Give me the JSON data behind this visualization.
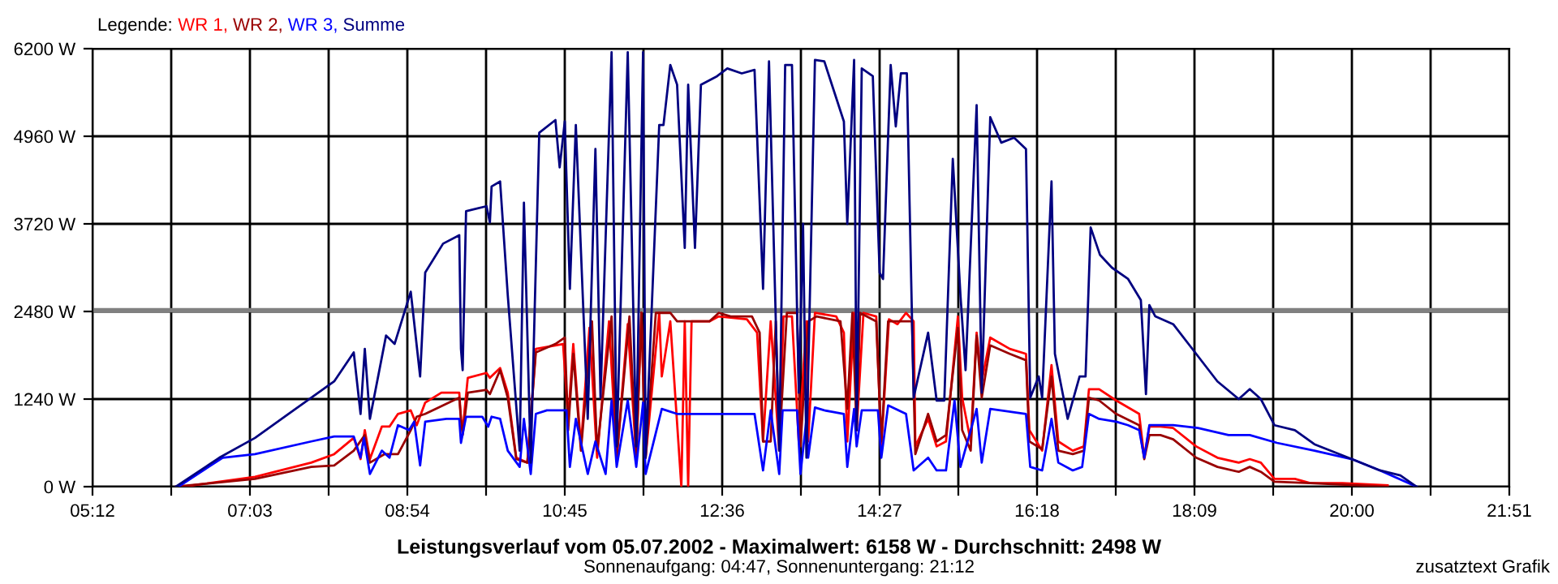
{
  "chart_data": {
    "type": "line",
    "title": "Leistungsverlauf vom 05.07.2002 - Maximalwert: 6158 W - Durchschnitt: 2498 W",
    "subtitle": "Sonnenaufgang: 04:47, Sonnenuntergang: 21:12",
    "legend_title": "Legende:",
    "legend": "top left",
    "grid": true,
    "line_style": "solid",
    "marker": "none",
    "annotations": [
      "zusatztext Grafik"
    ],
    "xlim": [
      5.2,
      21.85
    ],
    "xticks": [
      {
        "value": 5.2,
        "label": "05:12"
      },
      {
        "value": 6.125,
        "label": null
      },
      {
        "value": 7.05,
        "label": "07:03"
      },
      {
        "value": 7.975,
        "label": null
      },
      {
        "value": 8.9,
        "label": "08:54"
      },
      {
        "value": 9.825,
        "label": null
      },
      {
        "value": 10.75,
        "label": "10:45"
      },
      {
        "value": 11.675,
        "label": null
      },
      {
        "value": 12.6,
        "label": "12:36"
      },
      {
        "value": 13.525,
        "label": null
      },
      {
        "value": 14.45,
        "label": "14:27"
      },
      {
        "value": 15.375,
        "label": null
      },
      {
        "value": 16.3,
        "label": "16:18"
      },
      {
        "value": 17.225,
        "label": null
      },
      {
        "value": 18.15,
        "label": "18:09"
      },
      {
        "value": 19.075,
        "label": null
      },
      {
        "value": 20.0,
        "label": "20:00"
      },
      {
        "value": 20.925,
        "label": null
      },
      {
        "value": 21.85,
        "label": "21:51"
      }
    ],
    "ylim": [
      0,
      6200
    ],
    "yticks": [
      {
        "value": 0,
        "label": "0 W"
      },
      {
        "value": 1240,
        "label": "1240 W"
      },
      {
        "value": 2480,
        "label": "2480 W"
      },
      {
        "value": 3720,
        "label": "3720 W"
      },
      {
        "value": 4960,
        "label": "4960 W"
      },
      {
        "value": 6200,
        "label": "6200 W"
      }
    ],
    "ref_lines": [
      {
        "axis": "y",
        "value": 2498,
        "label": null,
        "color": "#808080"
      }
    ],
    "series": [
      {
        "name": "WR 1,",
        "color": "#ff0000",
        "x": [
          6.27,
          7.11,
          7.77,
          8.04,
          8.27,
          8.35,
          8.4,
          8.46,
          8.6,
          8.69,
          8.79,
          8.94,
          9.01,
          9.11,
          9.3,
          9.51,
          9.53,
          9.55,
          9.61,
          9.83,
          9.87,
          9.99,
          10.08,
          10.18,
          10.31,
          10.41,
          10.64,
          10.73,
          10.79,
          10.85,
          10.94,
          11.04,
          11.13,
          11.27,
          11.36,
          11.49,
          11.59,
          11.65,
          11.7,
          11.86,
          11.89,
          11.99,
          12.12,
          12.16,
          12.2,
          12.24,
          12.45,
          12.56,
          12.89,
          13.01,
          13.08,
          13.17,
          13.27,
          13.32,
          13.42,
          13.5,
          13.59,
          13.61,
          13.69,
          13.94,
          14.03,
          14.07,
          14.15,
          14.18,
          14.26,
          14.41,
          14.47,
          14.56,
          14.66,
          14.76,
          14.85,
          14.87,
          15.02,
          15.12,
          15.23,
          15.37,
          15.42,
          15.52,
          15.59,
          15.65,
          15.75,
          15.98,
          16.17,
          16.21,
          16.36,
          16.47,
          16.55,
          16.72,
          16.85,
          16.91,
          17.03,
          17.23,
          17.5,
          17.56,
          17.62,
          17.75,
          17.9,
          18.17,
          18.42,
          18.67,
          18.8,
          18.93,
          19.09,
          19.33,
          19.51,
          19.89,
          20.42
        ],
        "values": [
          0,
          140,
          340,
          460,
          690,
          390,
          800,
          390,
          850,
          850,
          1030,
          1080,
          870,
          1190,
          1330,
          1330,
          960,
          800,
          1540,
          1610,
          1540,
          1680,
          1330,
          410,
          340,
          1950,
          2000,
          2020,
          960,
          2020,
          570,
          2250,
          410,
          2340,
          410,
          2300,
          410,
          2460,
          410,
          2460,
          1560,
          2340,
          0,
          2340,
          0,
          2340,
          2340,
          2410,
          2370,
          2180,
          640,
          2340,
          510,
          2410,
          2410,
          640,
          2340,
          640,
          2460,
          2410,
          2180,
          640,
          2460,
          800,
          2460,
          2410,
          570,
          2370,
          2300,
          2460,
          2340,
          570,
          960,
          570,
          640,
          2410,
          1260,
          640,
          2180,
          1490,
          2110,
          1950,
          1880,
          800,
          510,
          1720,
          640,
          510,
          570,
          1380,
          1380,
          1220,
          1030,
          410,
          850,
          850,
          830,
          570,
          410,
          340,
          390,
          340,
          110,
          110,
          50,
          50,
          20
        ]
      },
      {
        "name": "WR 2,",
        "color": "#990000",
        "x": [
          6.18,
          7.11,
          7.77,
          8.04,
          8.27,
          8.4,
          8.46,
          8.63,
          8.79,
          8.94,
          9.01,
          9.11,
          9.51,
          9.53,
          9.55,
          9.61,
          9.83,
          9.87,
          9.99,
          10.08,
          10.18,
          10.31,
          10.41,
          10.64,
          10.75,
          10.79,
          10.85,
          10.94,
          11.07,
          11.13,
          11.3,
          11.36,
          11.51,
          11.59,
          11.65,
          11.7,
          11.82,
          11.99,
          12.07,
          12.45,
          12.56,
          12.7,
          12.95,
          13.04,
          13.08,
          13.17,
          13.23,
          13.27,
          13.36,
          13.48,
          13.52,
          13.61,
          13.71,
          13.99,
          14.07,
          14.13,
          14.18,
          14.22,
          14.41,
          14.47,
          14.55,
          14.83,
          14.87,
          15.02,
          15.12,
          15.23,
          15.37,
          15.42,
          15.52,
          15.59,
          15.65,
          15.75,
          15.98,
          16.17,
          16.21,
          16.36,
          16.47,
          16.55,
          16.72,
          16.85,
          16.91,
          17.03,
          17.23,
          17.5,
          17.56,
          17.62,
          17.75,
          17.9,
          18.17,
          18.42,
          18.67,
          18.8,
          18.93,
          19.09,
          19.51,
          20.42
        ],
        "values": [
          0,
          110,
          280,
          300,
          510,
          730,
          340,
          460,
          460,
          800,
          990,
          1030,
          1260,
          960,
          730,
          1330,
          1370,
          1310,
          1650,
          1260,
          390,
          340,
          1900,
          2020,
          2110,
          800,
          1880,
          510,
          2340,
          510,
          2410,
          410,
          2410,
          410,
          2460,
          410,
          2460,
          2460,
          2340,
          2340,
          2460,
          2410,
          2410,
          2180,
          640,
          640,
          2340,
          570,
          2460,
          2460,
          570,
          2340,
          2410,
          2340,
          1100,
          2460,
          800,
          2460,
          2340,
          640,
          2340,
          2340,
          460,
          1030,
          640,
          730,
          2250,
          800,
          510,
          2140,
          1260,
          2000,
          1880,
          1790,
          640,
          530,
          1560,
          510,
          460,
          510,
          1260,
          1220,
          1030,
          870,
          390,
          730,
          730,
          670,
          410,
          280,
          210,
          280,
          210,
          70,
          50,
          0
        ]
      },
      {
        "name": "WR 3,",
        "color": "#0000ff",
        "x": [
          6.21,
          6.59,
          6.73,
          7.11,
          7.77,
          8.04,
          8.27,
          8.35,
          8.39,
          8.46,
          8.6,
          8.69,
          8.79,
          8.92,
          8.98,
          9.05,
          9.11,
          9.36,
          9.51,
          9.53,
          9.59,
          9.78,
          9.85,
          9.89,
          9.99,
          10.08,
          10.22,
          10.27,
          10.35,
          10.41,
          10.54,
          10.77,
          10.81,
          10.88,
          11.02,
          11.11,
          11.23,
          11.3,
          11.36,
          11.49,
          11.59,
          11.67,
          11.7,
          11.89,
          12.07,
          12.64,
          12.98,
          13.08,
          13.17,
          13.27,
          13.31,
          13.48,
          13.52,
          13.59,
          13.61,
          13.69,
          13.8,
          14.03,
          14.07,
          14.15,
          14.18,
          14.24,
          14.43,
          14.47,
          14.55,
          14.76,
          14.85,
          15.02,
          15.12,
          15.23,
          15.33,
          15.4,
          15.59,
          15.65,
          15.75,
          16.17,
          16.22,
          16.36,
          16.47,
          16.55,
          16.72,
          16.83,
          16.91,
          17.03,
          17.23,
          17.37,
          17.5,
          17.56,
          17.62,
          17.75,
          17.9,
          18.19,
          18.55,
          18.8,
          19.12,
          19.56,
          20.0,
          20.33,
          20.76
        ],
        "values": [
          0,
          300,
          410,
          460,
          640,
          710,
          710,
          410,
          690,
          180,
          510,
          410,
          870,
          800,
          920,
          300,
          920,
          960,
          960,
          620,
          990,
          990,
          850,
          990,
          960,
          510,
          280,
          960,
          180,
          1030,
          1080,
          1080,
          280,
          960,
          180,
          640,
          180,
          1220,
          280,
          1220,
          280,
          1190,
          180,
          1100,
          1030,
          1030,
          1030,
          230,
          1080,
          180,
          1080,
          1080,
          180,
          960,
          410,
          1120,
          1080,
          1030,
          280,
          1100,
          570,
          1080,
          1080,
          410,
          1150,
          1030,
          230,
          410,
          230,
          230,
          1220,
          280,
          1100,
          340,
          1100,
          1030,
          280,
          230,
          960,
          340,
          230,
          280,
          1030,
          960,
          920,
          870,
          800,
          410,
          870,
          870,
          870,
          830,
          730,
          730,
          620,
          510,
          390,
          230,
          0
        ]
      },
      {
        "name": "Summe",
        "color": "#000080",
        "x": [
          6.18,
          6.69,
          7.11,
          7.77,
          8.04,
          8.27,
          8.35,
          8.4,
          8.46,
          8.65,
          8.75,
          8.94,
          9.05,
          9.11,
          9.32,
          9.51,
          9.53,
          9.55,
          9.59,
          9.83,
          9.87,
          9.89,
          9.99,
          10.08,
          10.22,
          10.27,
          10.35,
          10.45,
          10.64,
          10.69,
          10.75,
          10.81,
          10.88,
          11.02,
          11.11,
          11.17,
          11.3,
          11.36,
          11.49,
          11.59,
          11.67,
          11.7,
          11.86,
          11.91,
          11.99,
          12.07,
          12.16,
          12.2,
          12.28,
          12.35,
          12.54,
          12.66,
          12.83,
          12.98,
          13.08,
          13.15,
          13.27,
          13.34,
          13.42,
          13.5,
          13.55,
          13.59,
          13.69,
          13.8,
          14.03,
          14.07,
          14.15,
          14.18,
          14.24,
          14.37,
          14.45,
          14.49,
          14.58,
          14.64,
          14.7,
          14.77,
          14.85,
          15.02,
          15.12,
          15.21,
          15.31,
          15.4,
          15.46,
          15.59,
          15.65,
          15.75,
          15.88,
          16.03,
          16.17,
          16.22,
          16.32,
          16.36,
          16.47,
          16.51,
          16.66,
          16.8,
          16.87,
          16.93,
          17.04,
          17.18,
          17.37,
          17.52,
          17.58,
          17.62,
          17.69,
          17.9,
          18.17,
          18.42,
          18.67,
          18.8,
          18.93,
          19.09,
          19.33,
          19.56,
          20.0,
          20.33,
          20.57,
          20.76
        ],
        "values": [
          0,
          410,
          690,
          1260,
          1490,
          1900,
          1030,
          1950,
          960,
          2140,
          2020,
          2760,
          1560,
          3030,
          3440,
          3560,
          1950,
          1650,
          3900,
          3970,
          3740,
          4250,
          4320,
          2710,
          510,
          4020,
          340,
          5010,
          5190,
          4520,
          5170,
          2800,
          5120,
          960,
          4780,
          1260,
          6150,
          570,
          6150,
          570,
          6150,
          410,
          5120,
          5120,
          5970,
          5690,
          3380,
          5690,
          3380,
          5690,
          5810,
          5920,
          5850,
          5900,
          2800,
          6020,
          510,
          5970,
          5970,
          1330,
          3720,
          410,
          6040,
          6020,
          5170,
          3720,
          6040,
          800,
          5920,
          5810,
          3030,
          2940,
          5970,
          5100,
          5850,
          5850,
          1260,
          2180,
          1220,
          1220,
          4640,
          2710,
          1650,
          5400,
          1330,
          5230,
          4870,
          4940,
          4780,
          1260,
          1560,
          1260,
          4320,
          1880,
          960,
          1560,
          1560,
          3670,
          3280,
          3100,
          2940,
          2640,
          1310,
          2570,
          2410,
          2300,
          1880,
          1490,
          1240,
          1380,
          1240,
          870,
          800,
          600,
          390,
          230,
          160,
          0
        ]
      }
    ]
  }
}
